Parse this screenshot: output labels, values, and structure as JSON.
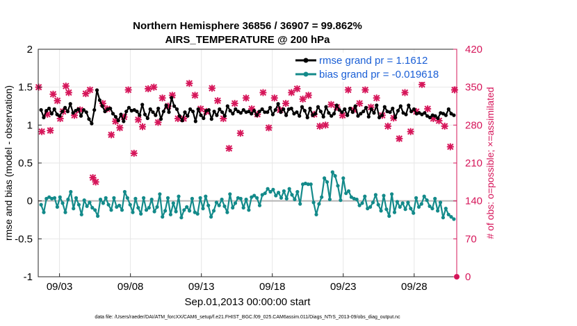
{
  "chart_data": {
    "type": "line",
    "title": "Northern Hemisphere 36856 / 36907 = 99.862%",
    "subtitle": "AIRS_TEMPERATURE @ 200 hPa",
    "xlabel": "Sep.01,2013 00:00:00 start",
    "ylabel": "rmse and bias (model - observation)",
    "y2label": "# of obs: o=possible; ×=assimilated",
    "ylim": [
      -1,
      2
    ],
    "yticks": [
      "-1",
      "-0.5",
      "0",
      "0.5",
      "1",
      "1.5",
      "2"
    ],
    "y2lim": [
      0,
      420
    ],
    "y2ticks": [
      "0",
      "70",
      "140",
      "210",
      "280",
      "350",
      "420"
    ],
    "xlim": [
      1.5,
      31
    ],
    "xticks": [
      {
        "label": "09/03",
        "x": 3
      },
      {
        "label": "09/08",
        "x": 8
      },
      {
        "label": "09/13",
        "x": 13
      },
      {
        "label": "09/18",
        "x": 18
      },
      {
        "label": "09/23",
        "x": 23
      },
      {
        "label": "09/28",
        "x": 28
      }
    ],
    "footer": "data file: /Users/raeder/DAI/ATM_forcXX/CAM6_setup/f.e21.FHIST_BGC.f09_025.CAM6assim.011/Diags_NTrS_2013-09/obs_diag_output.nc",
    "legend": {
      "rmse": "rmse grand pr = 1.1612",
      "bias": "bias grand pr = -0.019618"
    },
    "colors": {
      "rmse": "#000000",
      "bias": "#138a8a",
      "obs": "#d6165a",
      "zero": "#b3b3b3",
      "legend_text": "#1a5fd6"
    },
    "rmse": [
      1.2,
      1.1,
      1.19,
      1.22,
      1.15,
      1.21,
      1.14,
      1.12,
      1.18,
      1.23,
      1.18,
      1.28,
      1.16,
      1.19,
      1.21,
      1.12,
      1.2,
      1.17,
      1.08,
      1.02,
      1.2,
      1.46,
      1.33,
      1.25,
      1.18,
      1.21,
      1.22,
      1.15,
      1.11,
      1.06,
      1.14,
      1.05,
      1.18,
      1.23,
      1.19,
      1.2,
      1.18,
      1.13,
      1.27,
      1.14,
      1.09,
      1.21,
      1.17,
      1.13,
      1.22,
      1.08,
      1.18,
      1.26,
      1.17,
      1.36,
      1.25,
      1.21,
      1.12,
      1.06,
      1.17,
      1.12,
      1.21,
      1.18,
      1.05,
      1.21,
      1.13,
      1.09,
      1.19,
      1.2,
      1.08,
      1.18,
      1.13,
      1.21,
      1.17,
      1.12,
      1.25,
      1.19,
      1.15,
      1.21,
      1.18,
      1.16,
      1.2,
      1.17,
      1.18,
      1.15,
      1.19,
      1.13,
      1.18,
      1.21,
      1.17,
      1.17,
      1.23,
      1.14,
      1.2,
      1.28,
      1.17,
      1.21,
      1.13,
      1.21,
      1.22,
      1.15,
      1.17,
      1.12,
      1.24,
      1.19,
      1.1,
      1.22,
      1.13,
      1.15,
      1.24,
      1.18,
      1.11,
      1.24,
      1.16,
      1.12,
      1.15,
      1.26,
      1.2,
      1.17,
      1.21,
      1.13,
      1.22,
      1.17,
      1.25,
      1.12,
      1.15,
      1.18,
      1.23,
      1.11,
      1.21,
      1.16,
      1.26,
      1.1,
      1.13,
      1.24,
      1.18,
      1.17,
      1.22,
      1.1,
      1.19,
      1.25,
      1.16,
      1.14,
      1.26,
      1.18,
      1.21,
      1.15,
      1.16,
      1.14,
      1.16,
      1.12,
      1.1,
      1.13,
      1.12,
      1.09,
      1.16,
      1.15,
      1.13,
      1.21,
      1.15,
      1.13
    ],
    "bias": [
      -0.05,
      -0.15,
      0.03,
      0.05,
      0.03,
      0.04,
      -0.08,
      0.05,
      -0.03,
      -0.15,
      0.02,
      0.12,
      -0.1,
      0.04,
      -0.05,
      -0.18,
      0.01,
      -0.07,
      -0.02,
      -0.09,
      -0.12,
      -0.2,
      0.02,
      -0.03,
      0.04,
      -0.05,
      -0.12,
      0.04,
      -0.08,
      -0.06,
      -0.12,
      0.12,
      0.04,
      -0.05,
      -0.15,
      0.03,
      -0.09,
      -0.17,
      0.04,
      -0.12,
      -0.09,
      0.02,
      -0.14,
      -0.08,
      0.09,
      -0.21,
      -0.13,
      0.04,
      -0.18,
      -0.03,
      -0.14,
      0.06,
      -0.22,
      -0.12,
      -0.08,
      -0.13,
      0.03,
      -0.15,
      -0.17,
      0.04,
      -0.1,
      0.06,
      -0.06,
      -0.21,
      -0.13,
      -0.02,
      -0.06,
      0.02,
      -0.07,
      -0.15,
      0.09,
      -0.09,
      -0.03,
      0.04,
      0.03,
      -0.09,
      0.02,
      -0.12,
      0.05,
      0.07,
      0.04,
      -0.06,
      0.08,
      0.1,
      0.16,
      0.12,
      0.15,
      0.07,
      0.11,
      0.04,
      0.13,
      0.03,
      0.16,
      0.08,
      0.02,
      0.12,
      -0.04,
      0.22,
      0.23,
      0.22,
      0.22,
      -0.02,
      -0.18,
      -0.04,
      0.05,
      0.3,
      0.25,
      0.02,
      0.38,
      0.33,
      0.2,
      0.01,
      0.3,
      0.1,
      0.13,
      0.05,
      0.03,
      0.02,
      -0.06,
      -0.03,
      0.06,
      -0.1,
      -0.08,
      -0.02,
      0.08,
      -0.05,
      -0.13,
      0.07,
      -0.11,
      -0.2,
      0.09,
      -0.15,
      -0.01,
      -0.08,
      -0.03,
      -0.11,
      -0.02,
      -0.1,
      -0.16,
      0.04,
      -0.08,
      -0.04,
      0.06,
      0.01,
      -0.07,
      -0.1,
      0.03,
      -0.13,
      -0.02,
      -0.22,
      -0.1,
      -0.18,
      -0.21,
      -0.24
    ],
    "obs_x": [
      1.53,
      1.75,
      2.15,
      2.35,
      2.55,
      2.85,
      3.05,
      3.25,
      3.45,
      3.65,
      4.05,
      4.45,
      4.85,
      5.15,
      5.35,
      5.55,
      6.05,
      6.35,
      6.65,
      6.95,
      7.25,
      7.55,
      7.85,
      8.25,
      8.55,
      8.85,
      9.25,
      9.65,
      9.95,
      10.25,
      10.65,
      10.95,
      11.35,
      11.75,
      12.15,
      12.55,
      12.95,
      13.35,
      13.75,
      14.15,
      14.55,
      14.95,
      15.35,
      15.75,
      16.15,
      16.55,
      16.95,
      17.35,
      17.75,
      18.15,
      18.55,
      18.95,
      19.35,
      19.75,
      20.15,
      20.55,
      20.95,
      21.35,
      21.75,
      22.15,
      22.55,
      22.95,
      23.35,
      23.75,
      24.15,
      24.55,
      24.95,
      25.35,
      25.75,
      26.15,
      26.55,
      26.95,
      27.35,
      27.75,
      28.15,
      28.55,
      28.95,
      29.35,
      29.75,
      30.15,
      30.55,
      30.85
    ],
    "obs_y": [
      350,
      268,
      300,
      270,
      337,
      325,
      292,
      305,
      352,
      340,
      298,
      308,
      338,
      345,
      183,
      175,
      320,
      310,
      262,
      287,
      275,
      295,
      345,
      228,
      290,
      277,
      347,
      350,
      285,
      330,
      315,
      335,
      292,
      292,
      357,
      335,
      310,
      305,
      348,
      325,
      292,
      237,
      320,
      265,
      330,
      310,
      300,
      340,
      275,
      330,
      308,
      320,
      340,
      347,
      328,
      335,
      300,
      278,
      280,
      318,
      313,
      298,
      345,
      308,
      320,
      345,
      313,
      330,
      298,
      278,
      293,
      255,
      340,
      268,
      305,
      355,
      310,
      292,
      288,
      278,
      240,
      345
    ],
    "obs_zero_x": 31
  }
}
